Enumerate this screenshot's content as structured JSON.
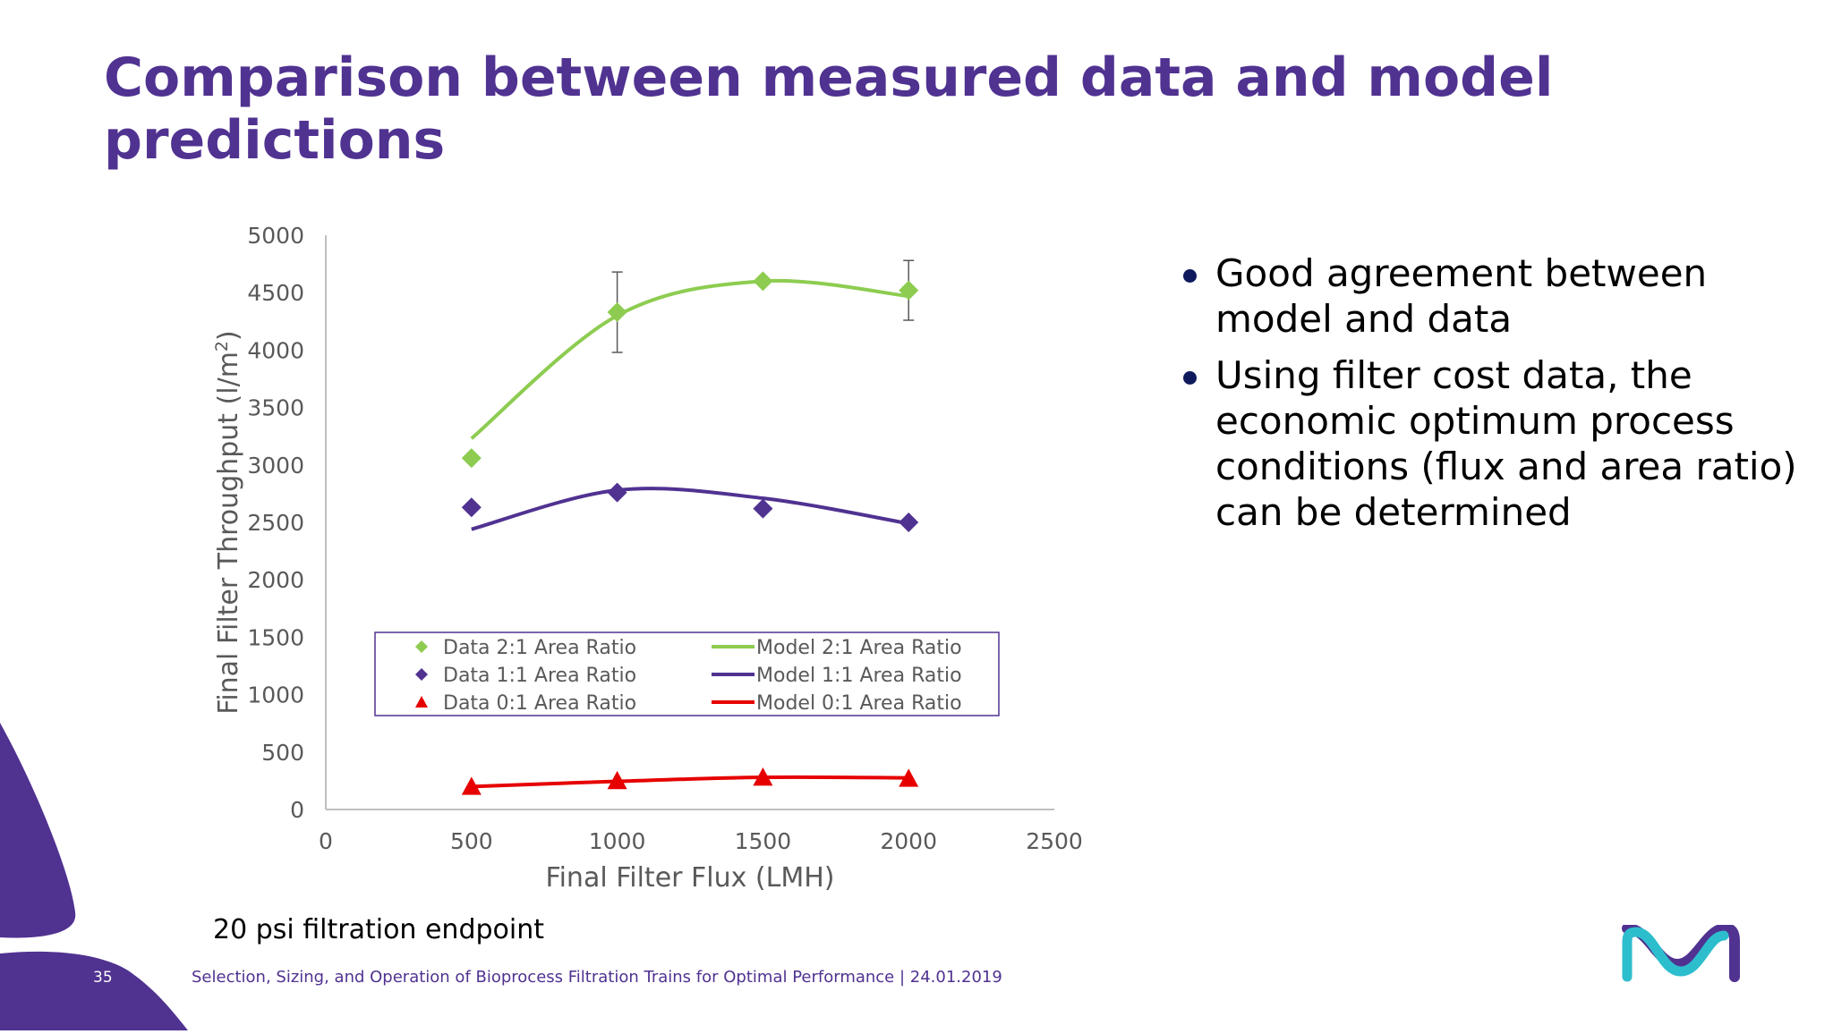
{
  "slide": {
    "title": "Comparison between measured data and model predictions",
    "bullets": [
      "Good agreement between model and data",
      "Using filter cost data, the economic optimum process conditions (flux and area ratio) can be determined"
    ],
    "note": "20 psi filtration endpoint",
    "page_number": "35",
    "footer": "Selection, Sizing, and Operation of Bioprocess Filtration Trains for Optimal Performance | 24.01.2019"
  },
  "colors": {
    "title": "#503291",
    "green": "#8dcc50",
    "purple": "#503291",
    "red": "#e60000",
    "cyan": "#2dbecd",
    "axis": "#bfbfbf",
    "text": "#595959"
  },
  "chart_data": {
    "type": "scatter",
    "xlabel": "Final Filter Flux (LMH)",
    "ylabel": "Final Filter Throughput (l/m2)",
    "ylabel_main": "Final Filter Throughput (l/m",
    "ylabel_sup": "2",
    "ylabel_end": ")",
    "xlim": [
      0,
      2500
    ],
    "ylim": [
      0,
      5000
    ],
    "x_ticks": [
      "0",
      "500",
      "1000",
      "1500",
      "2000",
      "2500"
    ],
    "y_ticks": [
      "0",
      "500",
      "1000",
      "1500",
      "2000",
      "2500",
      "3000",
      "3500",
      "4000",
      "4500",
      "5000"
    ],
    "grid": false,
    "legend_position": "center",
    "series": [
      {
        "name": "Data 2:1 Area Ratio",
        "kind": "marker",
        "marker": "diamond",
        "color": "#8dcc50",
        "x": [
          500,
          1000,
          1500,
          2000
        ],
        "y": [
          3060,
          4330,
          4600,
          4520
        ],
        "error": [
          null,
          350,
          null,
          260
        ]
      },
      {
        "name": "Data 1:1 Area Ratio",
        "kind": "marker",
        "marker": "diamond",
        "color": "#503291",
        "x": [
          500,
          1000,
          1500,
          2000
        ],
        "y": [
          2630,
          2760,
          2620,
          2500
        ]
      },
      {
        "name": "Data 0:1 Area Ratio",
        "kind": "marker",
        "marker": "triangle",
        "color": "#e60000",
        "x": [
          500,
          1000,
          1500,
          2000
        ],
        "y": [
          200,
          250,
          280,
          270
        ]
      },
      {
        "name": "Model 2:1 Area Ratio",
        "kind": "line",
        "color": "#8dcc50",
        "x": [
          500,
          1000,
          1500,
          2000
        ],
        "y": [
          3230,
          4300,
          4600,
          4470
        ]
      },
      {
        "name": "Model 1:1 Area Ratio",
        "kind": "line",
        "color": "#503291",
        "x": [
          500,
          1000,
          1500,
          2000
        ],
        "y": [
          2440,
          2780,
          2710,
          2490
        ]
      },
      {
        "name": "Model 0:1 Area Ratio",
        "kind": "line",
        "color": "#e60000",
        "x": [
          500,
          1000,
          1500,
          2000
        ],
        "y": [
          200,
          245,
          280,
          275
        ]
      }
    ]
  }
}
